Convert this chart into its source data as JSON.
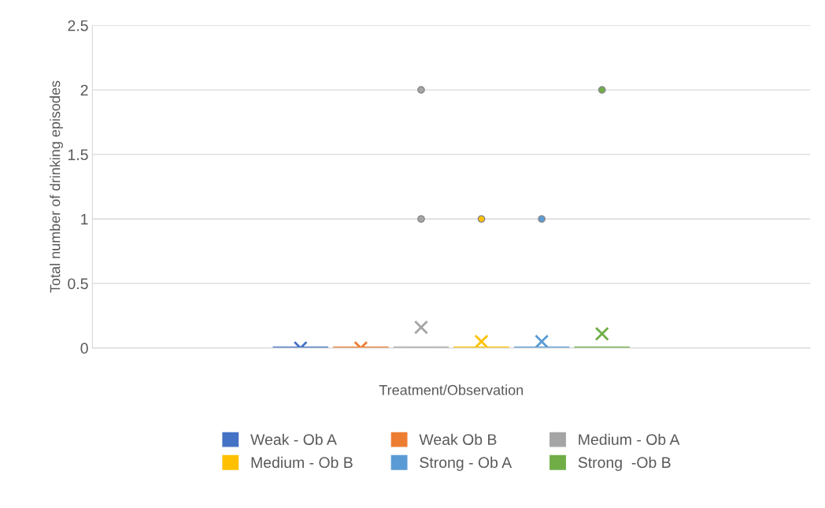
{
  "chart_data": {
    "type": "box",
    "xlabel": "Treatment/Observation",
    "ylabel": "Total number of drinking episodes",
    "categories": [
      null
    ],
    "ylim": [
      0,
      2.5
    ],
    "yticks": [
      0,
      0.5,
      1,
      1.5,
      2,
      2.5
    ],
    "grid": "y",
    "legend": "bottom",
    "series": [
      {
        "name": "Weak - Ob A",
        "color": "#4472c4",
        "boxes": [
          {
            "low": 0,
            "q1": 0,
            "median": 0,
            "q3": 0,
            "high": 0,
            "mean": 0
          }
        ]
      },
      {
        "name": "Weak Ob B",
        "color": "#ed7d31",
        "boxes": [
          {
            "low": 0,
            "q1": 0,
            "median": 0,
            "q3": 0,
            "high": 0,
            "mean": 0
          }
        ]
      },
      {
        "name": "Medium - Ob A",
        "color": "#a5a5a5",
        "boxes": [
          {
            "low": 0,
            "q1": 0,
            "median": 0,
            "q3": 0,
            "high": 0,
            "mean": 0.16,
            "outliers": [
              1,
              2
            ]
          }
        ]
      },
      {
        "name": "Medium - Ob B",
        "color": "#ffc000",
        "boxes": [
          {
            "low": 0,
            "q1": 0,
            "median": 0,
            "q3": 0,
            "high": 0,
            "mean": 0.05,
            "outliers": [
              1
            ]
          }
        ]
      },
      {
        "name": "Strong - Ob A",
        "color": "#5b9bd5",
        "boxes": [
          {
            "low": 0,
            "q1": 0,
            "median": 0,
            "q3": 0,
            "high": 0,
            "mean": 0.05,
            "outliers": [
              1
            ]
          }
        ]
      },
      {
        "name": "Strong  -Ob B",
        "color": "#70ad47",
        "boxes": [
          {
            "low": 0,
            "q1": 0,
            "median": 0,
            "q3": 0,
            "high": 0,
            "mean": 0.11,
            "outliers": [
              2
            ]
          }
        ]
      }
    ]
  }
}
